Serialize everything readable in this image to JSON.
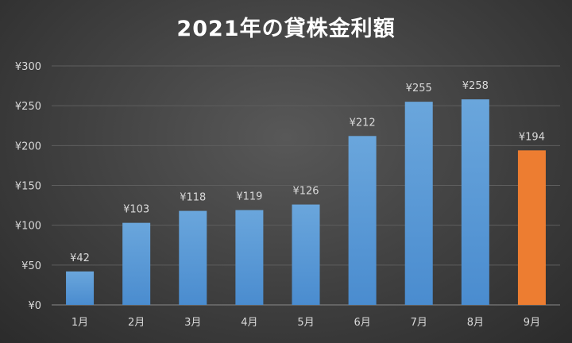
{
  "chart_data": {
    "type": "bar",
    "title": "2021年の貸株金利額",
    "categories": [
      "1月",
      "2月",
      "3月",
      "4月",
      "5月",
      "6月",
      "7月",
      "8月",
      "9月"
    ],
    "values": [
      42,
      103,
      118,
      119,
      126,
      212,
      255,
      258,
      194
    ],
    "data_labels": [
      "¥42",
      "¥103",
      "¥118",
      "¥119",
      "¥126",
      "¥212",
      "¥255",
      "¥258",
      "¥194"
    ],
    "y_ticks": [
      0,
      50,
      100,
      150,
      200,
      250,
      300
    ],
    "y_tick_labels": [
      "¥0",
      "¥50",
      "¥100",
      "¥150",
      "¥200",
      "¥250",
      "¥300"
    ],
    "ylim": [
      0,
      300
    ],
    "grid": true,
    "legend": "none",
    "colors": {
      "bar": "#5b9bd5",
      "highlight_bar": "#ed7d31",
      "gridline": "#5e5e5e"
    },
    "highlight_index": 8
  }
}
